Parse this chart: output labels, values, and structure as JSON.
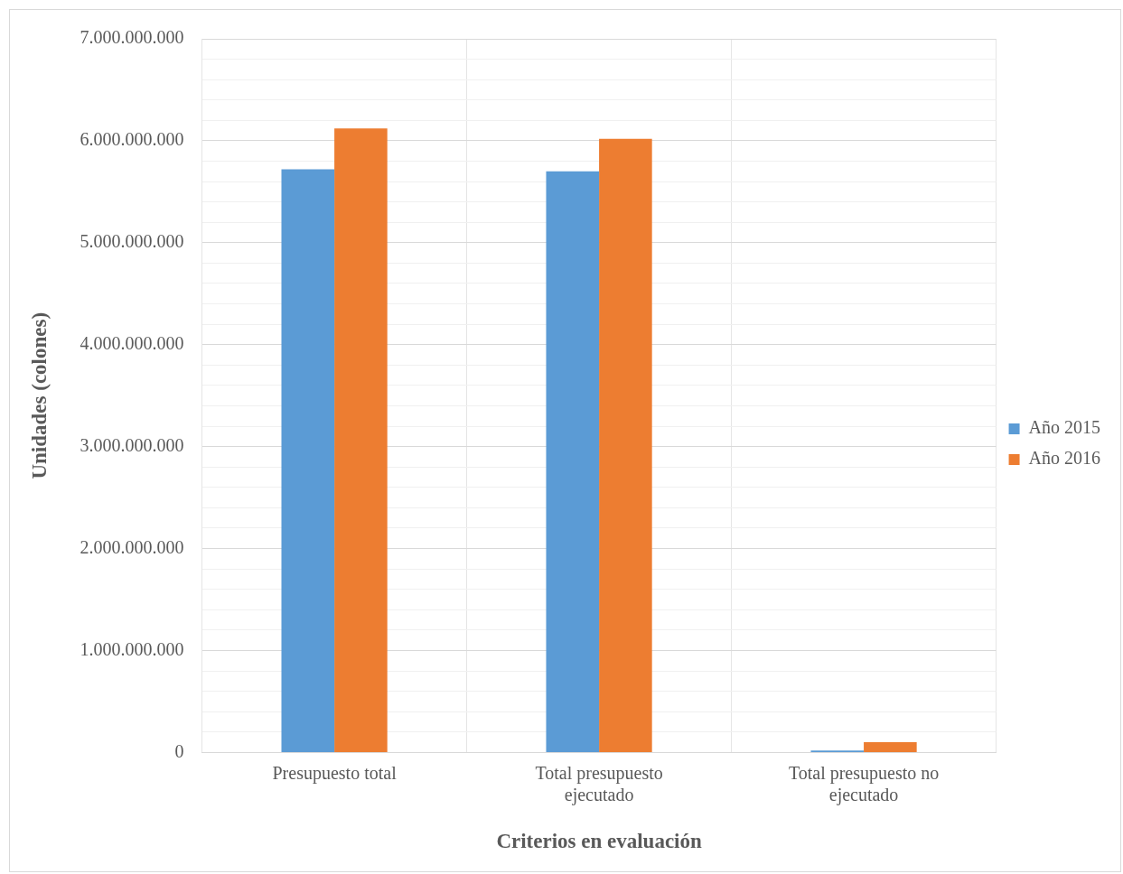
{
  "chart_data": {
    "type": "bar",
    "xlabel": "Criterios en evaluación",
    "ylabel": "Unidades (colones)",
    "categories": [
      "Presupuesto total",
      "Total presupuesto ejecutado",
      "Total presupuesto no ejecutado"
    ],
    "series": [
      {
        "name": "Año 2015",
        "color": "#5b9bd5",
        "values": [
          5720000000,
          5700000000,
          20000000
        ]
      },
      {
        "name": "Año 2016",
        "color": "#ed7d31",
        "values": [
          6120000000,
          6020000000,
          100000000
        ]
      }
    ],
    "ylim": [
      0,
      7000000000
    ],
    "yticks": [
      {
        "value": 0,
        "label": "0"
      },
      {
        "value": 200000000,
        "label": null
      },
      {
        "value": 400000000,
        "label": null
      },
      {
        "value": 600000000,
        "label": null
      },
      {
        "value": 800000000,
        "label": null
      },
      {
        "value": 1000000000,
        "label": "1.000.000.000"
      },
      {
        "value": 1200000000,
        "label": null
      },
      {
        "value": 1400000000,
        "label": null
      },
      {
        "value": 1600000000,
        "label": null
      },
      {
        "value": 1800000000,
        "label": null
      },
      {
        "value": 2000000000,
        "label": "2.000.000.000"
      },
      {
        "value": 2200000000,
        "label": null
      },
      {
        "value": 2400000000,
        "label": null
      },
      {
        "value": 2600000000,
        "label": null
      },
      {
        "value": 2800000000,
        "label": null
      },
      {
        "value": 3000000000,
        "label": "3.000.000.000"
      },
      {
        "value": 3200000000,
        "label": null
      },
      {
        "value": 3400000000,
        "label": null
      },
      {
        "value": 3600000000,
        "label": null
      },
      {
        "value": 3800000000,
        "label": null
      },
      {
        "value": 4000000000,
        "label": "4.000.000.000"
      },
      {
        "value": 4200000000,
        "label": null
      },
      {
        "value": 4400000000,
        "label": null
      },
      {
        "value": 4600000000,
        "label": null
      },
      {
        "value": 4800000000,
        "label": null
      },
      {
        "value": 5000000000,
        "label": "5.000.000.000"
      },
      {
        "value": 5200000000,
        "label": null
      },
      {
        "value": 5400000000,
        "label": null
      },
      {
        "value": 5600000000,
        "label": null
      },
      {
        "value": 5800000000,
        "label": null
      },
      {
        "value": 6000000000,
        "label": "6.000.000.000"
      },
      {
        "value": 6200000000,
        "label": null
      },
      {
        "value": 6400000000,
        "label": null
      },
      {
        "value": 6600000000,
        "label": null
      },
      {
        "value": 6800000000,
        "label": null
      },
      {
        "value": 7000000000,
        "label": "7.000.000.000"
      }
    ],
    "grid": true,
    "legend": "right"
  }
}
